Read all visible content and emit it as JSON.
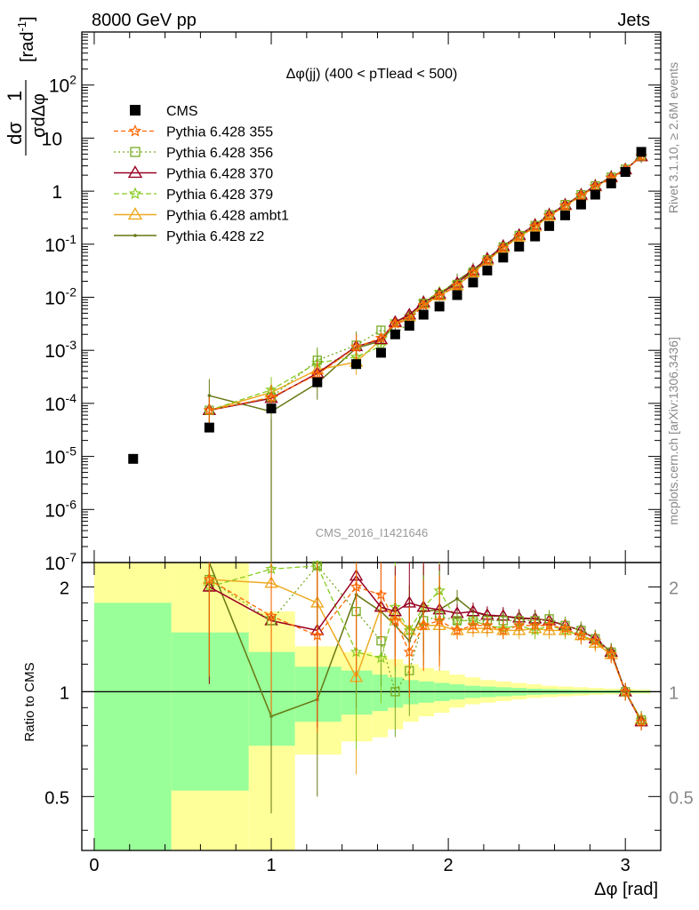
{
  "header": {
    "left": "8000 GeV pp",
    "right": "Jets"
  },
  "plot_title": "Δφ(jj) (400 < pTlead < 500)",
  "watermark": "CMS_2016_I1421646",
  "side_labels": {
    "rivet": "Rivet 3.1.10, ≥ 2.6M events",
    "mcplots": "mcplots.cern.ch [arXiv:1306.3436]"
  },
  "colors": {
    "cms": "#000000",
    "p355": "#ff6600",
    "p356": "#77aa22",
    "p370": "#990022",
    "p379": "#88cc22",
    "ambt1": "#eeaa22",
    "z2": "#667711",
    "band_inner": "#99ff99",
    "band_outer": "#ffff99"
  },
  "chart_data": [
    {
      "type": "line",
      "panel": "main",
      "ylabel": "1/σ dσ/dΔφ [rad⁻¹]",
      "ylabel_parts": {
        "one": "1",
        "num": "dσ",
        "den": "σdΔφ",
        "unit": "[rad",
        "unit_exp": "-1",
        "unit_close": "]"
      },
      "yscale": "log",
      "ylim": [
        1e-07,
        1000
      ],
      "xlim": [
        -0.07,
        3.2
      ],
      "y_ticks": [
        {
          "v": 1e-07,
          "base": "10",
          "exp": "-7"
        },
        {
          "v": 1e-06,
          "base": "10",
          "exp": "-6"
        },
        {
          "v": 1e-05,
          "base": "10",
          "exp": "-5"
        },
        {
          "v": 0.0001,
          "base": "10",
          "exp": "-4"
        },
        {
          "v": 0.001,
          "base": "10",
          "exp": "-3"
        },
        {
          "v": 0.01,
          "base": "10",
          "exp": "-2"
        },
        {
          "v": 0.1,
          "base": "10",
          "exp": "-1"
        },
        {
          "v": 1,
          "base": "1",
          "exp": ""
        },
        {
          "v": 10,
          "base": "10",
          "exp": ""
        },
        {
          "v": 100,
          "base": "10",
          "exp": "2"
        }
      ],
      "legend_placement": "top-left",
      "series": [
        {
          "key": "cms",
          "name": "CMS",
          "x": [
            0.22,
            0.65,
            1.0,
            1.26,
            1.48,
            1.62,
            1.7,
            1.78,
            1.86,
            1.95,
            2.05,
            2.14,
            2.22,
            2.31,
            2.4,
            2.49,
            2.57,
            2.66,
            2.75,
            2.83,
            2.92,
            3.0,
            3.09
          ],
          "y": [
            9e-06,
            3.5e-05,
            8e-05,
            0.00025,
            0.00055,
            0.0009,
            0.002,
            0.0029,
            0.0047,
            0.0067,
            0.011,
            0.019,
            0.032,
            0.056,
            0.09,
            0.14,
            0.22,
            0.35,
            0.56,
            0.86,
            1.4,
            2.3,
            5.5
          ]
        },
        {
          "key": "p355",
          "name": "Pythia 6.428 355",
          "x": [
            0.65,
            1.0,
            1.26,
            1.48,
            1.62,
            1.7,
            1.78,
            1.86,
            1.95,
            2.05,
            2.14,
            2.22,
            2.31,
            2.4,
            2.49,
            2.57,
            2.66,
            2.75,
            2.83,
            2.92,
            3.0,
            3.09
          ],
          "y": [
            7.4e-05,
            0.00013,
            0.00035,
            0.00115,
            0.0017,
            0.0032,
            0.0038,
            0.0071,
            0.0106,
            0.0165,
            0.029,
            0.049,
            0.085,
            0.138,
            0.215,
            0.34,
            0.53,
            0.82,
            1.21,
            1.78,
            2.55,
            4.5
          ]
        },
        {
          "key": "p356",
          "name": "Pythia 6.428 356",
          "x": [
            0.65,
            1.0,
            1.26,
            1.48,
            1.62,
            1.7,
            1.78,
            1.86,
            1.95,
            2.05,
            2.14,
            2.22,
            2.31,
            2.4,
            2.49,
            2.57,
            2.66,
            2.75,
            2.83,
            2.92,
            3.0,
            3.09
          ],
          "y": [
            7.4e-05,
            0.00013,
            0.00065,
            0.00125,
            0.0024,
            0.002,
            0.0034,
            0.0077,
            0.011,
            0.0175,
            0.03,
            0.051,
            0.089,
            0.146,
            0.225,
            0.36,
            0.56,
            0.86,
            1.26,
            1.84,
            2.6,
            4.6
          ]
        },
        {
          "key": "p370",
          "name": "Pythia 6.428 370",
          "x": [
            0.65,
            1.0,
            1.26,
            1.48,
            1.62,
            1.7,
            1.78,
            1.86,
            1.95,
            2.05,
            2.14,
            2.22,
            2.31,
            2.4,
            2.49,
            2.57,
            2.66,
            2.75,
            2.83,
            2.92,
            3.0,
            3.09
          ],
          "y": [
            7.4e-05,
            0.000125,
            0.00037,
            0.00118,
            0.0016,
            0.0034,
            0.0047,
            0.008,
            0.0115,
            0.0185,
            0.032,
            0.053,
            0.092,
            0.148,
            0.23,
            0.36,
            0.55,
            0.85,
            1.25,
            1.83,
            2.55,
            4.5
          ]
        },
        {
          "key": "p379",
          "name": "Pythia 6.428 379",
          "x": [
            0.65,
            1.0,
            1.26,
            1.48,
            1.62,
            1.7,
            1.78,
            1.86,
            1.95,
            2.05,
            2.14,
            2.22,
            2.31,
            2.4,
            2.49,
            2.57,
            2.66,
            2.75,
            2.83,
            2.92,
            3.0,
            3.09
          ],
          "y": [
            7.4e-05,
            0.00018,
            0.00058,
            0.00075,
            0.0012,
            0.0035,
            0.0044,
            0.0082,
            0.0126,
            0.0183,
            0.031,
            0.05,
            0.086,
            0.139,
            0.218,
            0.35,
            0.54,
            0.84,
            1.24,
            1.81,
            2.55,
            4.6
          ]
        },
        {
          "key": "ambt1",
          "name": "Pythia 6.428 ambt1",
          "x": [
            0.65,
            1.0,
            1.26,
            1.48,
            1.62,
            1.7,
            1.78,
            1.86,
            1.95,
            2.05,
            2.14,
            2.22,
            2.31,
            2.4,
            2.49,
            2.57,
            2.66,
            2.75,
            2.83,
            2.92,
            3.0,
            3.09
          ],
          "y": [
            7.4e-05,
            0.00016,
            0.00043,
            0.0006,
            0.0016,
            0.0033,
            0.0043,
            0.0075,
            0.0107,
            0.0166,
            0.029,
            0.049,
            0.085,
            0.137,
            0.213,
            0.34,
            0.53,
            0.82,
            1.22,
            1.79,
            2.55,
            4.5
          ]
        },
        {
          "key": "z2",
          "name": "Pythia 6.428 z2",
          "x": [
            0.65,
            1.0,
            1.26,
            1.48,
            1.62,
            1.7,
            1.78,
            1.86,
            1.95,
            2.05,
            2.14,
            2.22,
            2.31,
            2.4,
            2.49,
            2.57,
            2.66,
            2.75,
            2.83,
            2.92,
            3.0,
            3.09
          ],
          "y": [
            0.00014,
            7e-05,
            0.00024,
            0.0011,
            0.0015,
            0.0031,
            0.004,
            0.008,
            0.0115,
            0.0205,
            0.033,
            0.053,
            0.091,
            0.146,
            0.228,
            0.36,
            0.55,
            0.85,
            1.25,
            1.83,
            2.55,
            4.6
          ]
        }
      ]
    },
    {
      "type": "line",
      "panel": "ratio",
      "xlabel": "Δφ [rad]",
      "ylabel": "Ratio to CMS",
      "xlim": [
        -0.07,
        3.2
      ],
      "ylim": [
        0.35,
        2.35
      ],
      "x_ticks": [
        0,
        1,
        2,
        3
      ],
      "x_tick_labels": [
        "0",
        "1",
        "2",
        "3"
      ],
      "y_ticks": [
        0.5,
        1,
        2
      ],
      "y_tick_labels": [
        "0.5",
        "1",
        "2"
      ],
      "uncertainty_bands": {
        "edges": [
          0.0,
          0.436,
          0.873,
          1.134,
          1.396,
          1.571,
          1.658,
          1.745,
          1.833,
          1.92,
          2.007,
          2.094,
          2.182,
          2.269,
          2.356,
          2.443,
          2.531,
          2.618,
          2.705,
          2.793,
          2.88,
          2.967,
          3.054,
          3.1416
        ],
        "inner": [
          [
            0.0,
            1.8
          ],
          [
            0.52,
            1.48
          ],
          [
            0.7,
            1.3
          ],
          [
            0.82,
            1.18
          ],
          [
            0.86,
            1.15
          ],
          [
            0.88,
            1.12
          ],
          [
            0.9,
            1.1
          ],
          [
            0.92,
            1.08
          ],
          [
            0.93,
            1.07
          ],
          [
            0.94,
            1.06
          ],
          [
            0.95,
            1.05
          ],
          [
            0.96,
            1.04
          ],
          [
            0.965,
            1.035
          ],
          [
            0.97,
            1.03
          ],
          [
            0.975,
            1.025
          ],
          [
            0.98,
            1.02
          ],
          [
            0.983,
            1.017
          ],
          [
            0.986,
            1.014
          ],
          [
            0.988,
            1.012
          ],
          [
            0.99,
            1.01
          ],
          [
            0.99,
            1.01
          ],
          [
            0.992,
            1.008
          ],
          [
            0.993,
            1.007
          ]
        ],
        "outer": [
          [
            0.0,
            2.4
          ],
          [
            0.0,
            2.4
          ],
          [
            0.0,
            1.7
          ],
          [
            0.66,
            1.35
          ],
          [
            0.72,
            1.3
          ],
          [
            0.74,
            1.27
          ],
          [
            0.78,
            1.24
          ],
          [
            0.82,
            1.2
          ],
          [
            0.85,
            1.17
          ],
          [
            0.87,
            1.15
          ],
          [
            0.9,
            1.12
          ],
          [
            0.92,
            1.1
          ],
          [
            0.93,
            1.08
          ],
          [
            0.94,
            1.07
          ],
          [
            0.95,
            1.06
          ],
          [
            0.96,
            1.05
          ],
          [
            0.965,
            1.04
          ],
          [
            0.97,
            1.035
          ],
          [
            0.975,
            1.03
          ],
          [
            0.98,
            1.025
          ],
          [
            0.983,
            1.02
          ],
          [
            0.985,
            1.018
          ],
          [
            0.987,
            1.015
          ]
        ]
      },
      "series": [
        {
          "key": "p355",
          "name": "Pythia 6.428 355",
          "x": [
            0.65,
            1.0,
            1.26,
            1.48,
            1.62,
            1.7,
            1.78,
            1.86,
            1.95,
            2.05,
            2.14,
            2.22,
            2.31,
            2.4,
            2.49,
            2.57,
            2.66,
            2.75,
            2.83,
            2.92,
            3.0,
            3.09
          ],
          "y": [
            2.1,
            1.65,
            1.45,
            2.0,
            1.9,
            1.6,
            1.3,
            1.55,
            1.6,
            1.5,
            1.55,
            1.55,
            1.5,
            1.55,
            1.55,
            1.55,
            1.52,
            1.45,
            1.4,
            1.28,
            1.0,
            0.82
          ]
        },
        {
          "key": "p356",
          "name": "Pythia 6.428 356",
          "x": [
            0.65,
            1.0,
            1.26,
            1.48,
            1.62,
            1.7,
            1.78,
            1.86,
            1.95,
            2.05,
            2.14,
            2.22,
            2.31,
            2.4,
            2.49,
            2.57,
            2.66,
            2.75,
            2.83,
            2.92,
            3.0,
            3.09
          ],
          "y": [
            2.1,
            1.6,
            2.3,
            1.7,
            1.4,
            1.0,
            1.15,
            1.6,
            1.65,
            1.6,
            1.6,
            1.6,
            1.6,
            1.6,
            1.6,
            1.62,
            1.55,
            1.5,
            1.42,
            1.3,
            1.0,
            0.83
          ]
        },
        {
          "key": "p370",
          "name": "Pythia 6.428 370",
          "x": [
            0.65,
            1.0,
            1.26,
            1.48,
            1.62,
            1.7,
            1.78,
            1.86,
            1.95,
            2.05,
            2.14,
            2.22,
            2.31,
            2.4,
            2.49,
            2.57,
            2.66,
            2.75,
            2.83,
            2.92,
            3.0,
            3.09
          ],
          "y": [
            2.0,
            1.6,
            1.5,
            2.15,
            1.75,
            1.7,
            1.8,
            1.75,
            1.72,
            1.68,
            1.7,
            1.66,
            1.65,
            1.63,
            1.62,
            1.6,
            1.55,
            1.5,
            1.42,
            1.3,
            1.0,
            0.82
          ]
        },
        {
          "key": "p379",
          "name": "Pythia 6.428 379",
          "x": [
            0.65,
            1.0,
            1.26,
            1.48,
            1.62,
            1.7,
            1.78,
            1.86,
            1.95,
            2.05,
            2.14,
            2.22,
            2.31,
            2.4,
            2.49,
            2.57,
            2.66,
            2.75,
            2.83,
            2.92,
            3.0,
            3.09
          ],
          "y": [
            2.0,
            2.25,
            2.3,
            1.3,
            1.25,
            1.75,
            1.5,
            1.75,
            1.95,
            1.6,
            1.6,
            1.55,
            1.52,
            1.55,
            1.5,
            1.55,
            1.5,
            1.45,
            1.4,
            1.3,
            1.0,
            0.83
          ]
        },
        {
          "key": "ambt1",
          "name": "Pythia 6.428 ambt1",
          "x": [
            0.65,
            1.0,
            1.26,
            1.48,
            1.62,
            1.7,
            1.78,
            1.86,
            1.95,
            2.05,
            2.14,
            2.22,
            2.31,
            2.4,
            2.49,
            2.57,
            2.66,
            2.75,
            2.83,
            2.92,
            3.0,
            3.09
          ],
          "y": [
            2.1,
            2.05,
            1.8,
            1.1,
            1.75,
            1.65,
            1.5,
            1.55,
            1.55,
            1.5,
            1.52,
            1.52,
            1.5,
            1.5,
            1.52,
            1.5,
            1.5,
            1.45,
            1.38,
            1.28,
            1.0,
            0.83
          ]
        },
        {
          "key": "z2",
          "name": "Pythia 6.428 z2",
          "x": [
            0.65,
            1.0,
            1.26,
            1.48,
            1.62,
            1.7,
            1.78,
            1.86,
            1.95,
            2.05,
            2.14,
            2.22,
            2.31,
            2.4,
            2.49,
            2.57,
            2.66,
            2.75,
            2.83,
            2.92,
            3.0,
            3.09
          ],
          "y": [
            4.0,
            0.85,
            0.95,
            1.9,
            1.7,
            1.55,
            1.4,
            1.7,
            1.72,
            1.85,
            1.7,
            1.65,
            1.65,
            1.62,
            1.62,
            1.6,
            1.55,
            1.5,
            1.42,
            1.3,
            1.0,
            0.83
          ]
        }
      ]
    }
  ]
}
